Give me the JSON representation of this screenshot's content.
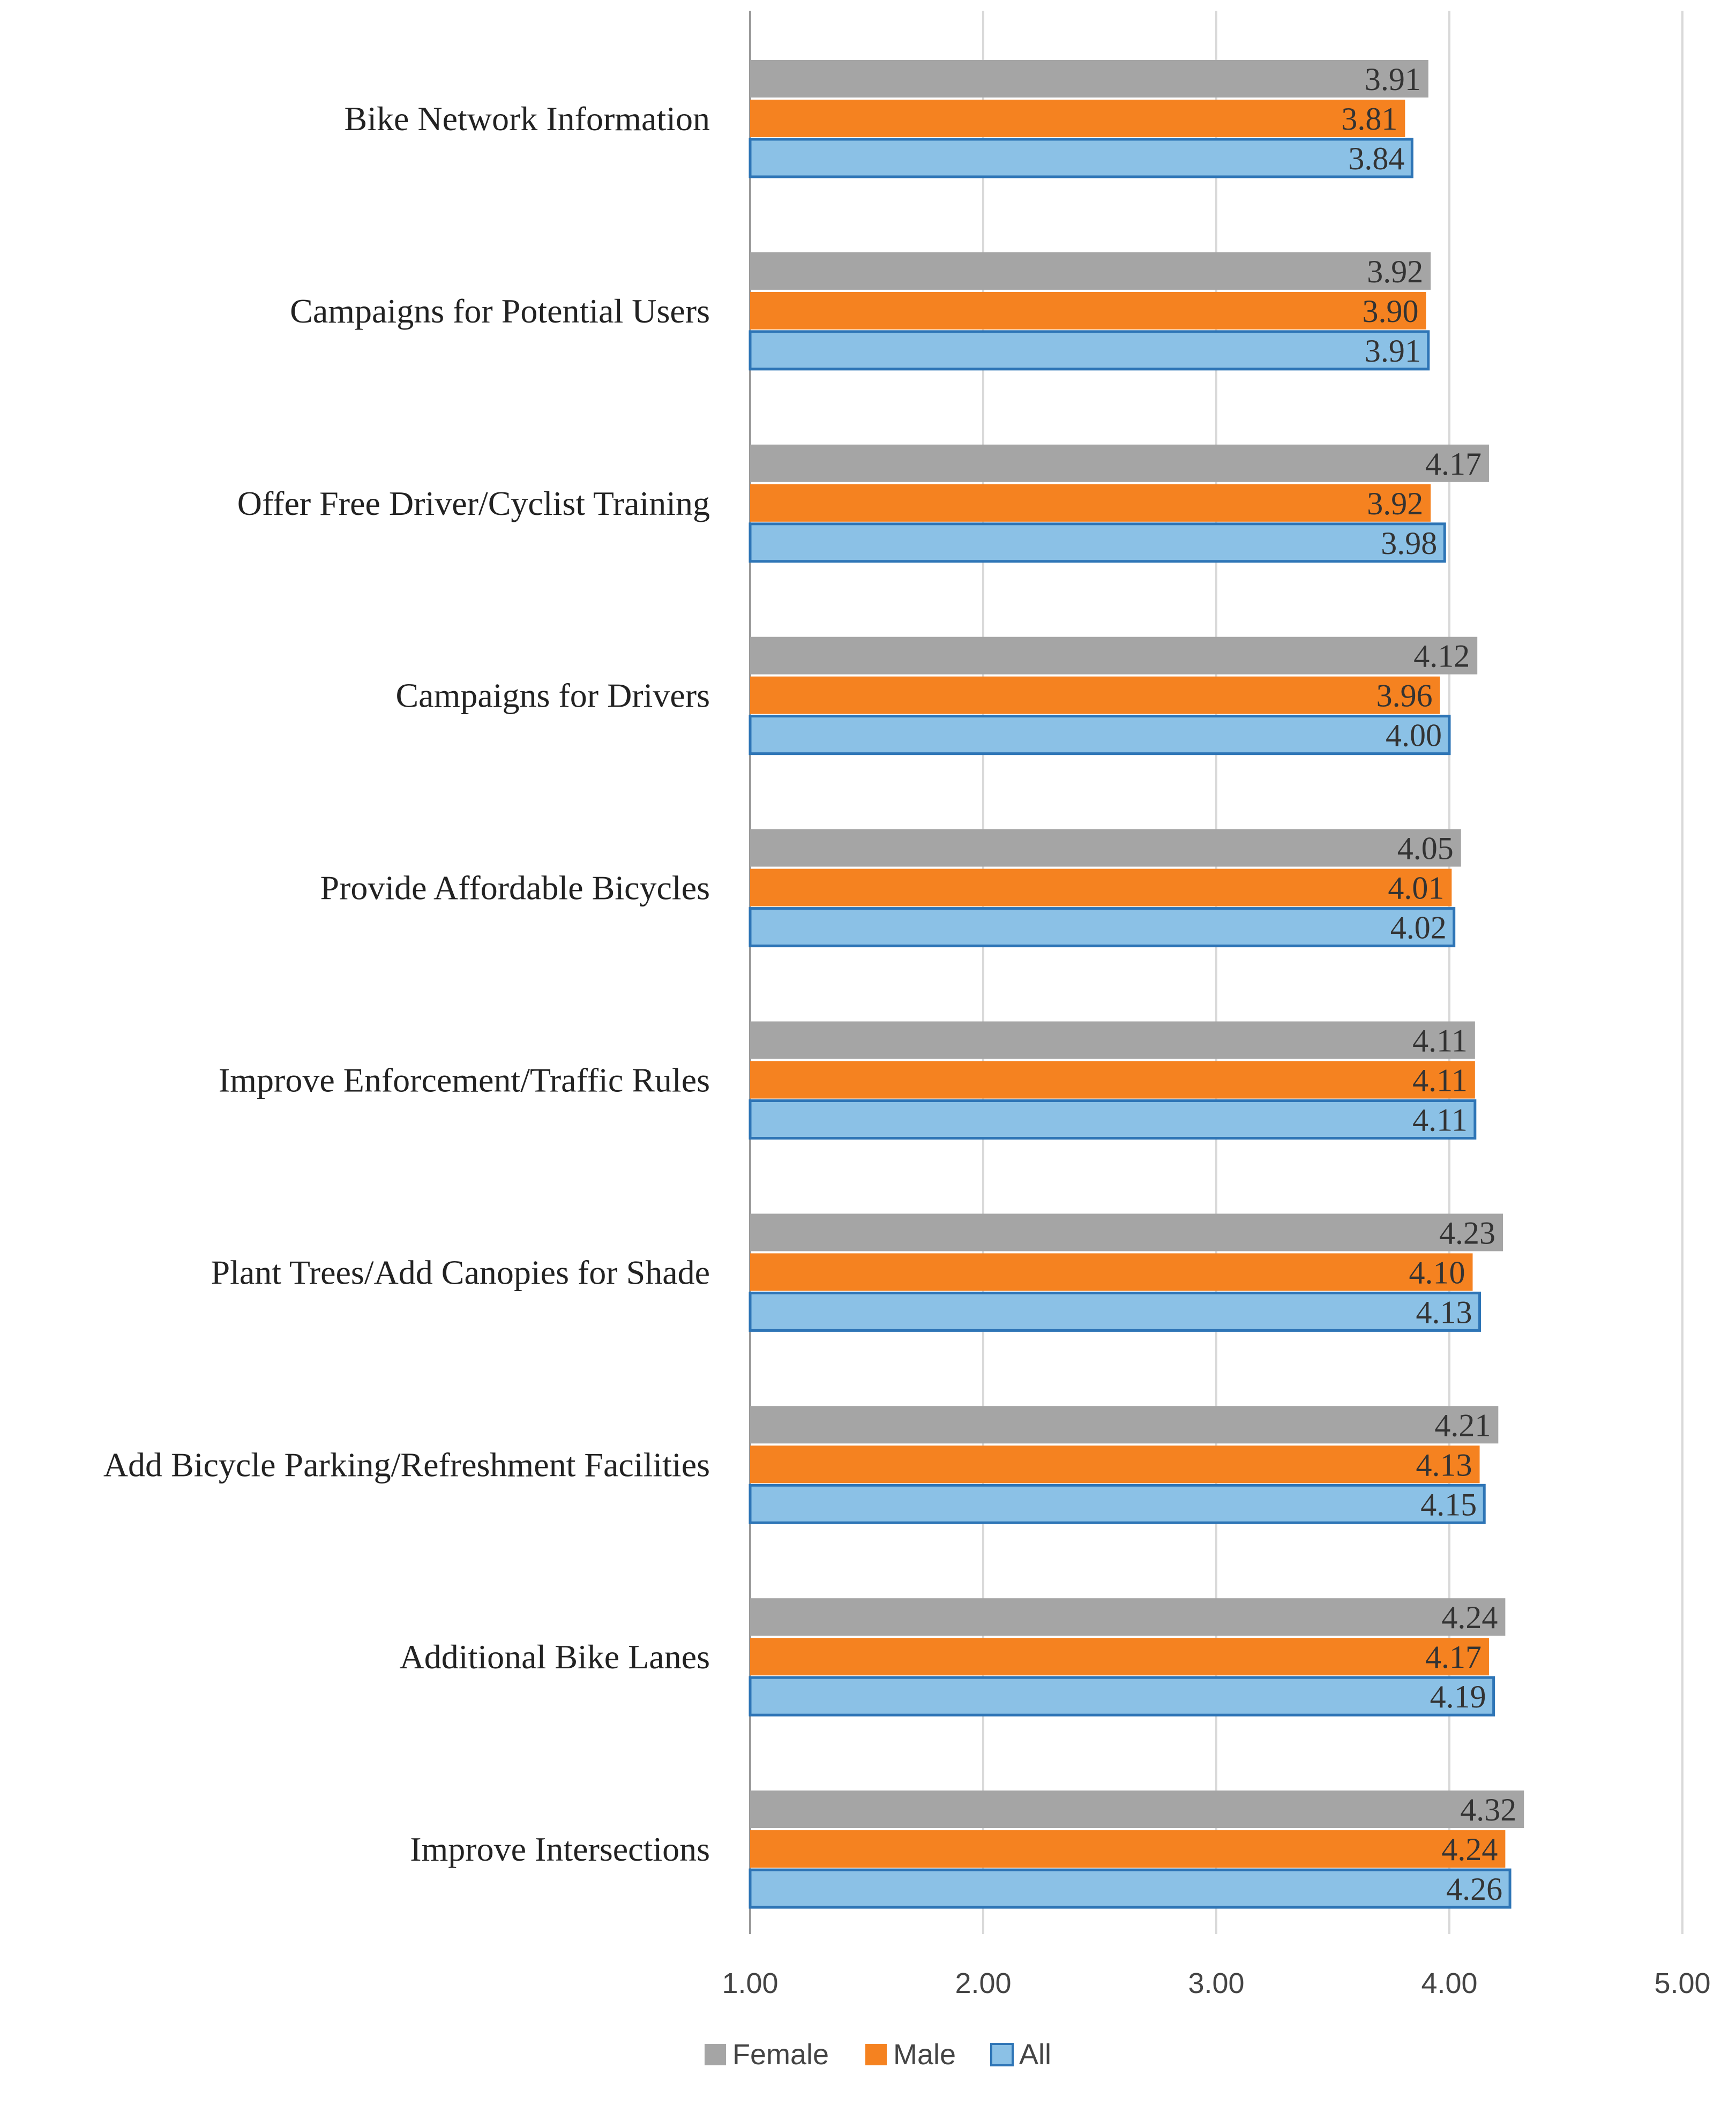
{
  "chart_data": {
    "type": "bar",
    "orientation": "horizontal",
    "categories": [
      "Bike Network Information",
      "Campaigns for Potential Users",
      "Offer Free Driver/Cyclist Training",
      "Campaigns for Drivers",
      "Provide Affordable Bicycles",
      "Improve Enforcement/Traffic Rules",
      "Plant Trees/Add Canopies for Shade",
      "Add Bicycle Parking/Refreshment Facilities",
      "Additional Bike Lanes",
      "Improve Intersections"
    ],
    "series": [
      {
        "name": "Female",
        "color": "#A5A5A5",
        "values": [
          3.91,
          3.92,
          4.17,
          4.12,
          4.05,
          4.11,
          4.23,
          4.21,
          4.24,
          4.32
        ],
        "labels": [
          "3.91",
          "3.92",
          "4.17",
          "4.12",
          "4.05",
          "4.11",
          "4.23",
          "4.21",
          "4.24",
          "4.32"
        ]
      },
      {
        "name": "Male",
        "color": "#F58220",
        "values": [
          3.81,
          3.9,
          3.92,
          3.96,
          4.01,
          4.11,
          4.1,
          4.13,
          4.17,
          4.24
        ],
        "labels": [
          "3.81",
          "3.90",
          "3.92",
          "3.96",
          "4.01",
          "4.11",
          "4.10",
          "4.13",
          "4.17",
          "4.24"
        ]
      },
      {
        "name": "All",
        "color": "#8BC1E6",
        "border": "#2E75B6",
        "values": [
          3.84,
          3.91,
          3.98,
          4.0,
          4.02,
          4.11,
          4.13,
          4.15,
          4.19,
          4.26
        ],
        "labels": [
          "3.84",
          "3.91",
          "3.98",
          "4.00",
          "4.02",
          "4.11",
          "4.13",
          "4.15",
          "4.19",
          "4.26"
        ]
      }
    ],
    "xlim": [
      1.0,
      5.0
    ],
    "xticks": [
      "1.00",
      "2.00",
      "3.00",
      "4.00",
      "5.00"
    ],
    "grid": true,
    "legend_position": "bottom-center",
    "title": "",
    "xlabel": "",
    "ylabel": ""
  }
}
